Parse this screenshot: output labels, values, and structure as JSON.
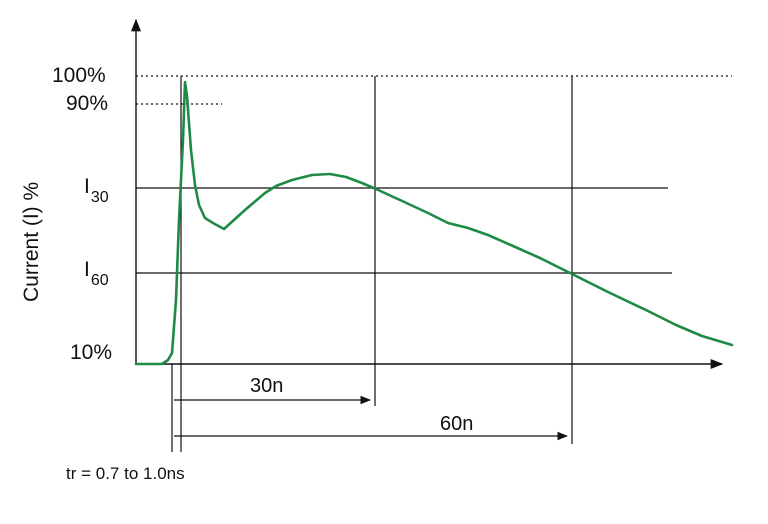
{
  "diagram": {
    "y_axis_label": "Current (I) %",
    "levels": {
      "p100": "100%",
      "p90": "90%",
      "i30_main": "I",
      "i30_sub": "30",
      "i60_main": "I",
      "i60_sub": "60",
      "p10": "10%"
    },
    "durations": {
      "d30": "30n",
      "d60": "60n"
    },
    "rise_time_note": "tr = 0.7 to 1.0ns",
    "colors": {
      "waveform": "#1e8a46",
      "lines": "#111111"
    }
  }
}
